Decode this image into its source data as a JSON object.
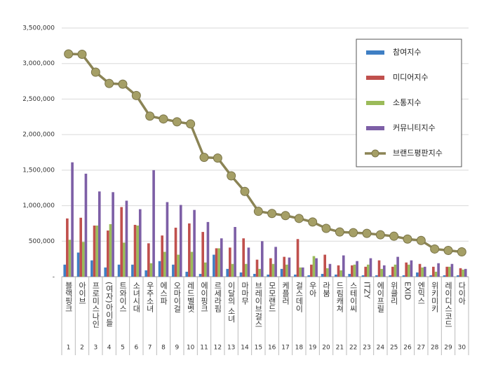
{
  "chart_data": {
    "type": "bar",
    "categories": [
      "블랙핑크",
      "아이브",
      "프로미스나인",
      "(여자)아이들",
      "트와이스",
      "소녀시대",
      "우주소녀",
      "에스파",
      "오마이걸",
      "레드벨벳",
      "에이핑크",
      "르세라핌",
      "이달의 소녀",
      "마마무",
      "브레이브걸스",
      "모모랜드",
      "케플러",
      "걸스데이",
      "우아",
      "라붐",
      "드림캐쳐",
      "스테이씨",
      "ITZY",
      "에이프릴",
      "위클리",
      "EXID",
      "엔믹스",
      "위키미키",
      "레이디스코드",
      "다이아"
    ],
    "ranks": [
      1,
      2,
      3,
      4,
      5,
      6,
      7,
      8,
      9,
      10,
      11,
      12,
      13,
      14,
      15,
      16,
      17,
      18,
      19,
      20,
      21,
      22,
      23,
      24,
      25,
      26,
      27,
      28,
      29,
      30
    ],
    "series": [
      {
        "name": "참여지수",
        "color": "#3f7fc4",
        "values": [
          170000,
          340000,
          230000,
          130000,
          170000,
          170000,
          90000,
          220000,
          170000,
          70000,
          40000,
          310000,
          110000,
          60000,
          40000,
          30000,
          110000,
          30000,
          20000,
          40000,
          30000,
          40000,
          20000,
          20000,
          20000,
          20000,
          60000,
          20000,
          20000,
          20000
        ]
      },
      {
        "name": "미디어지수",
        "color": "#c0504d",
        "values": [
          820000,
          830000,
          720000,
          650000,
          980000,
          730000,
          470000,
          580000,
          690000,
          750000,
          630000,
          400000,
          410000,
          540000,
          240000,
          260000,
          280000,
          530000,
          170000,
          310000,
          160000,
          160000,
          140000,
          230000,
          140000,
          200000,
          180000,
          140000,
          140000,
          120000
        ]
      },
      {
        "name": "소통지수",
        "color": "#9bbb59",
        "values": [
          520000,
          490000,
          720000,
          740000,
          480000,
          720000,
          190000,
          350000,
          310000,
          350000,
          200000,
          400000,
          180000,
          180000,
          110000,
          180000,
          170000,
          130000,
          290000,
          120000,
          90000,
          170000,
          170000,
          110000,
          170000,
          170000,
          130000,
          70000,
          140000,
          100000
        ]
      },
      {
        "name": "커뮤니티지수",
        "color": "#7d5fa6",
        "values": [
          1610000,
          1450000,
          1200000,
          1190000,
          1070000,
          950000,
          1500000,
          1050000,
          1010000,
          940000,
          770000,
          540000,
          700000,
          410000,
          500000,
          420000,
          270000,
          130000,
          260000,
          180000,
          300000,
          220000,
          260000,
          160000,
          280000,
          230000,
          140000,
          190000,
          180000,
          110000
        ]
      },
      {
        "name": "브랜드평판지수",
        "color": "#8b8455",
        "type": "line",
        "values": [
          3135000,
          3130000,
          2879000,
          2720000,
          2710000,
          2550000,
          2260000,
          2220000,
          2180000,
          2150000,
          1680000,
          1670000,
          1420000,
          1200000,
          920000,
          890000,
          860000,
          820000,
          770000,
          680000,
          630000,
          620000,
          610000,
          590000,
          570000,
          530000,
          510000,
          390000,
          370000,
          350000
        ]
      }
    ],
    "ylim": [
      0,
      3500000
    ],
    "yticks": [
      {
        "value": 0,
        "label": "-"
      },
      {
        "value": 500000,
        "label": "500,000"
      },
      {
        "value": 1000000,
        "label": "1,000,000"
      },
      {
        "value": 1500000,
        "label": "1,500,000"
      },
      {
        "value": 2000000,
        "label": "2,000,000"
      },
      {
        "value": 2500000,
        "label": "2,500,000"
      },
      {
        "value": 3000000,
        "label": "3,000,000"
      },
      {
        "value": 3500000,
        "label": "3,500,000"
      }
    ],
    "grid": true,
    "legend": "top-right"
  }
}
